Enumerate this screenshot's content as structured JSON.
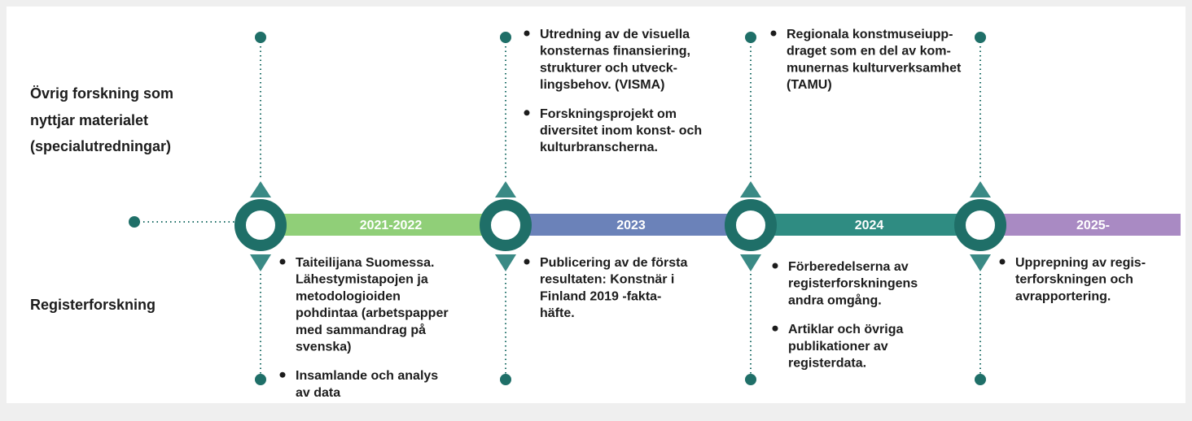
{
  "row_labels": {
    "other": [
      "Övrig forskning som",
      "nyttjar materialet",
      "(specialutredningar)"
    ],
    "register": "Registerforskning"
  },
  "periods": [
    {
      "label": "2021-2022",
      "top": [],
      "bottom": [
        [
          "Taiteilijana Suomessa.",
          "Lähestymistapojen ja",
          "metodologioiden",
          "pohdintaa (arbetspapper",
          "med sammandrag på",
          "svenska)"
        ],
        [
          "Insamlande och analys",
          "av data"
        ]
      ]
    },
    {
      "label": "2023",
      "top": [
        [
          "Utredning av de visuella",
          "konsternas finansiering,",
          "strukturer och utveck-",
          "lingsbehov. (VISMA)"
        ],
        [
          "Forskningsprojekt om",
          "diversitet inom konst- och",
          "kulturbranscherna."
        ]
      ],
      "bottom": [
        [
          "Publicering av de första",
          "resultaten: Konstnär i",
          "Finland 2019 -fakta-",
          "häfte."
        ]
      ]
    },
    {
      "label": "2024",
      "top": [
        [
          "Regionala konstmuseiupp-",
          "draget som en del av kom-",
          "munernas kulturverksamhet",
          "(TAMU)"
        ]
      ],
      "bottom": [
        [
          "Förberedelserna av",
          "registerforskningens",
          "andra omgång."
        ],
        [
          "Artiklar och övriga",
          "publikationer av",
          "registerdata."
        ]
      ]
    },
    {
      "label": "2025-",
      "top": [],
      "bottom": [
        [
          "Upprepning av regis-",
          "terforskningen och",
          "avrapportering."
        ]
      ]
    }
  ]
}
